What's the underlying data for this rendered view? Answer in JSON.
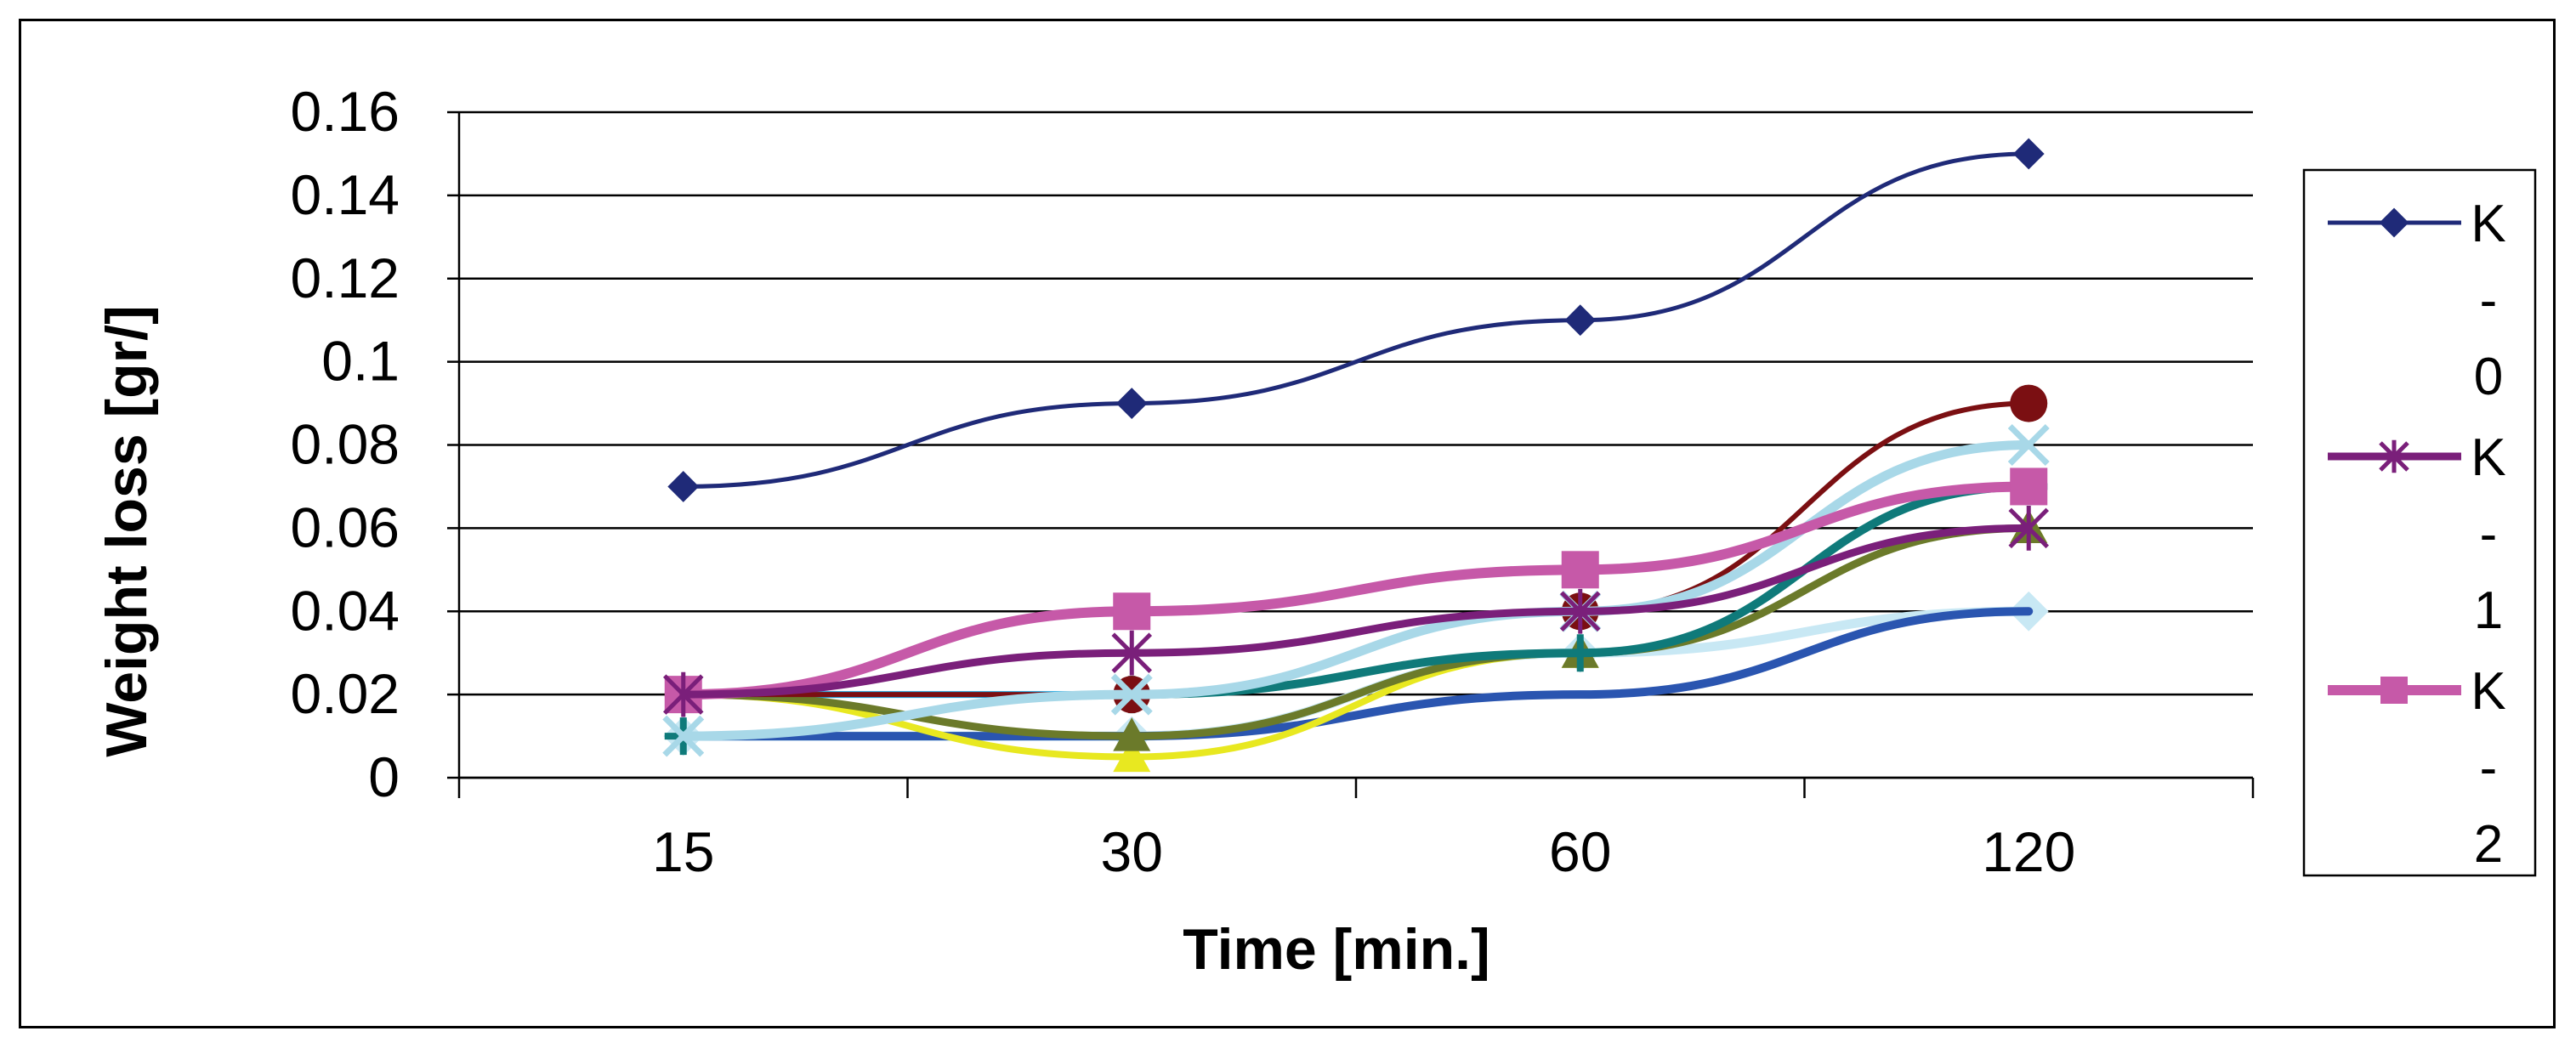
{
  "chart_data": {
    "type": "line",
    "title": "",
    "xlabel": "Time [min.]",
    "ylabel": "Weight loss [gr/]",
    "categories": [
      "15",
      "30",
      "60",
      "120"
    ],
    "ylim": [
      0,
      0.16
    ],
    "yticks": [
      "0.16",
      "0.14",
      "0.12",
      "0.1",
      "0.08",
      "0.06",
      "0.04",
      "0.02",
      "0"
    ],
    "grid": true,
    "legend_position": "right",
    "series": [
      {
        "name": "K-0",
        "legend_chars": [
          "K",
          "-",
          "0"
        ],
        "color": "#1f2a78",
        "marker": "diamond",
        "values": [
          0.07,
          0.09,
          0.11,
          0.15
        ]
      },
      {
        "name": "K-1",
        "legend_chars": [
          "K",
          "-",
          "1"
        ],
        "color": "#7a1f7a",
        "marker": "star",
        "values": [
          0.02,
          0.03,
          0.04,
          0.06
        ]
      },
      {
        "name": "K-2",
        "legend_chars": [
          "K",
          "-",
          "2"
        ],
        "color": "#c659a8",
        "marker": "square",
        "values": [
          0.02,
          0.04,
          0.05,
          0.07
        ]
      },
      {
        "color": "#a8d8e8",
        "marker": "x",
        "values": [
          0.01,
          0.02,
          0.04,
          0.08
        ]
      },
      {
        "color": "#7b0f12",
        "marker": "circle",
        "values": [
          0.02,
          0.02,
          0.04,
          0.09
        ]
      },
      {
        "color": "#0f7a7a",
        "marker": "plus",
        "values": [
          0.01,
          0.02,
          0.03,
          0.07
        ]
      },
      {
        "color": "#6b7a2a",
        "marker": "triangle",
        "values": [
          0.02,
          0.01,
          0.03,
          0.06
        ]
      },
      {
        "color": "#e8e820",
        "marker": "triangle",
        "values": [
          0.02,
          0.005,
          0.03,
          0.06
        ]
      },
      {
        "color": "#2a55b0",
        "marker": "none",
        "values": [
          0.01,
          0.01,
          0.02,
          0.04
        ]
      },
      {
        "color": "#1fa8e0",
        "marker": "none",
        "values": [
          0.02,
          0.02,
          0.04,
          0.06
        ]
      },
      {
        "color": "#c8e8f4",
        "marker": "diamond",
        "values": [
          0.01,
          0.01,
          0.03,
          0.04
        ]
      }
    ]
  }
}
